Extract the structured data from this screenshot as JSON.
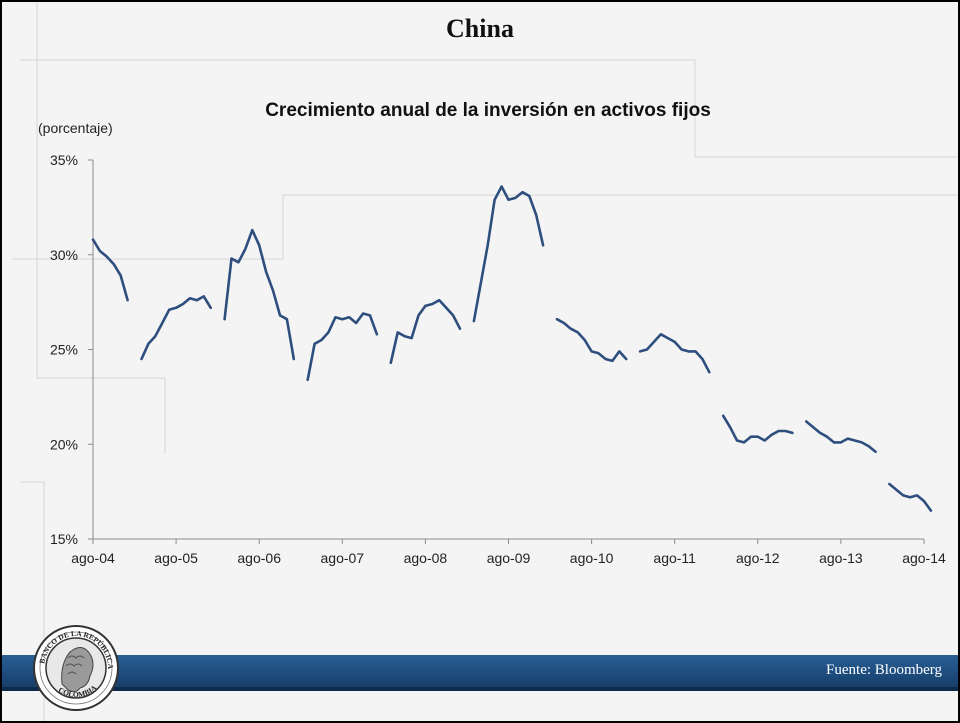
{
  "slide": {
    "title": "China",
    "source": "Fuente: Bloomberg",
    "logo_text": "BANCO DE LA REPÚBLICA · COLOMBIA"
  },
  "colors": {
    "line": "#2e4e7e",
    "background": "#f4f4f4",
    "axis": "#8c8c8c",
    "footer": "#1f4f82"
  },
  "chart_data": {
    "type": "line",
    "title": "Crecimiento anual de la inversión en activos fijos",
    "ylabel": "(porcentaje)",
    "xlabel": "",
    "ylim": [
      15,
      35
    ],
    "y_ticks": [
      "35%",
      "30%",
      "25%",
      "20%",
      "15%"
    ],
    "y_tick_values": [
      35,
      30,
      25,
      20,
      15
    ],
    "x_ticks": [
      "ago-04",
      "ago-05",
      "ago-06",
      "ago-07",
      "ago-08",
      "ago-09",
      "ago-10",
      "ago-11",
      "ago-12",
      "ago-13",
      "ago-14"
    ],
    "x_range_months": [
      "2004-08",
      "2014-08"
    ],
    "grid": false,
    "series": [
      {
        "segments": [
          [
            [
              "2004-08",
              30.8
            ],
            [
              "2004-09",
              30.2
            ],
            [
              "2004-10",
              29.9
            ],
            [
              "2004-11",
              29.5
            ],
            [
              "2004-12",
              28.9
            ],
            [
              "2005-01",
              27.6
            ]
          ],
          [
            [
              "2005-03",
              24.5
            ],
            [
              "2005-04",
              25.3
            ],
            [
              "2005-05",
              25.7
            ],
            [
              "2005-06",
              26.4
            ],
            [
              "2005-07",
              27.1
            ],
            [
              "2005-08",
              27.2
            ],
            [
              "2005-09",
              27.4
            ],
            [
              "2005-10",
              27.7
            ],
            [
              "2005-11",
              27.6
            ],
            [
              "2005-12",
              27.8
            ],
            [
              "2006-01",
              27.2
            ]
          ],
          [
            [
              "2006-03",
              26.6
            ],
            [
              "2006-04",
              29.8
            ],
            [
              "2006-05",
              29.6
            ],
            [
              "2006-06",
              30.3
            ],
            [
              "2006-07",
              31.3
            ],
            [
              "2006-08",
              30.5
            ],
            [
              "2006-09",
              29.1
            ],
            [
              "2006-10",
              28.1
            ],
            [
              "2006-11",
              26.8
            ],
            [
              "2006-12",
              26.6
            ],
            [
              "2007-01",
              24.5
            ]
          ],
          [
            [
              "2007-03",
              23.4
            ],
            [
              "2007-04",
              25.3
            ],
            [
              "2007-05",
              25.5
            ],
            [
              "2007-06",
              25.9
            ],
            [
              "2007-07",
              26.7
            ],
            [
              "2007-08",
              26.6
            ],
            [
              "2007-09",
              26.7
            ],
            [
              "2007-10",
              26.4
            ],
            [
              "2007-11",
              26.9
            ],
            [
              "2007-12",
              26.8
            ],
            [
              "2008-01",
              25.8
            ]
          ],
          [
            [
              "2008-03",
              24.3
            ],
            [
              "2008-04",
              25.9
            ],
            [
              "2008-05",
              25.7
            ],
            [
              "2008-06",
              25.6
            ],
            [
              "2008-07",
              26.8
            ],
            [
              "2008-08",
              27.3
            ],
            [
              "2008-09",
              27.4
            ],
            [
              "2008-10",
              27.6
            ],
            [
              "2008-11",
              27.2
            ],
            [
              "2008-12",
              26.8
            ],
            [
              "2009-01",
              26.1
            ]
          ],
          [
            [
              "2009-03",
              26.5
            ],
            [
              "2009-04",
              28.5
            ],
            [
              "2009-05",
              30.5
            ],
            [
              "2009-06",
              32.9
            ],
            [
              "2009-07",
              33.6
            ],
            [
              "2009-08",
              32.9
            ],
            [
              "2009-09",
              33.0
            ],
            [
              "2009-10",
              33.3
            ],
            [
              "2009-11",
              33.1
            ],
            [
              "2009-12",
              32.1
            ],
            [
              "2010-01",
              30.5
            ]
          ],
          [
            [
              "2010-03",
              26.6
            ],
            [
              "2010-04",
              26.4
            ],
            [
              "2010-05",
              26.1
            ],
            [
              "2010-06",
              25.9
            ],
            [
              "2010-07",
              25.5
            ],
            [
              "2010-08",
              24.9
            ],
            [
              "2010-09",
              24.8
            ],
            [
              "2010-10",
              24.5
            ],
            [
              "2010-11",
              24.4
            ],
            [
              "2010-12",
              24.9
            ],
            [
              "2011-01",
              24.5
            ]
          ],
          [
            [
              "2011-03",
              24.9
            ],
            [
              "2011-04",
              25.0
            ],
            [
              "2011-05",
              25.4
            ],
            [
              "2011-06",
              25.8
            ],
            [
              "2011-07",
              25.6
            ],
            [
              "2011-08",
              25.4
            ],
            [
              "2011-09",
              25.0
            ],
            [
              "2011-10",
              24.9
            ],
            [
              "2011-11",
              24.9
            ],
            [
              "2011-12",
              24.5
            ],
            [
              "2012-01",
              23.8
            ]
          ],
          [
            [
              "2012-03",
              21.5
            ],
            [
              "2012-04",
              20.9
            ],
            [
              "2012-05",
              20.2
            ],
            [
              "2012-06",
              20.1
            ],
            [
              "2012-07",
              20.4
            ],
            [
              "2012-08",
              20.4
            ],
            [
              "2012-09",
              20.2
            ],
            [
              "2012-10",
              20.5
            ],
            [
              "2012-11",
              20.7
            ],
            [
              "2012-12",
              20.7
            ],
            [
              "2013-01",
              20.6
            ]
          ],
          [
            [
              "2013-03",
              21.2
            ],
            [
              "2013-04",
              20.9
            ],
            [
              "2013-05",
              20.6
            ],
            [
              "2013-06",
              20.4
            ],
            [
              "2013-07",
              20.1
            ],
            [
              "2013-08",
              20.1
            ],
            [
              "2013-09",
              20.3
            ],
            [
              "2013-10",
              20.2
            ],
            [
              "2013-11",
              20.1
            ],
            [
              "2013-12",
              19.9
            ],
            [
              "2014-01",
              19.6
            ]
          ],
          [
            [
              "2014-03",
              17.9
            ],
            [
              "2014-04",
              17.6
            ],
            [
              "2014-05",
              17.3
            ],
            [
              "2014-06",
              17.2
            ],
            [
              "2014-07",
              17.3
            ],
            [
              "2014-08",
              17.0
            ],
            [
              "2014-09",
              16.5
            ]
          ]
        ]
      }
    ]
  }
}
